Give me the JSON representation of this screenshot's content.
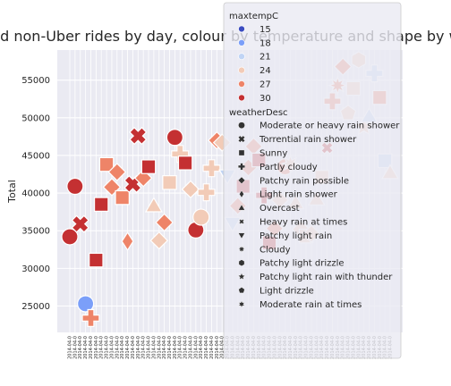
{
  "chart_data": {
    "type": "scatter",
    "title": "Uber and non-Uber rides by day, colour by temperature and shape by weather",
    "xlabel": "",
    "ylabel": "Total",
    "ylim": [
      21500,
      59000
    ],
    "yticks": [
      25000,
      30000,
      35000,
      40000,
      45000,
      50000,
      55000
    ],
    "ytick_labels": [
      "25000",
      "30000",
      "35000",
      "40000",
      "45000",
      "50000",
      "55000"
    ],
    "grid": true,
    "x_tick_count": 62,
    "x_tick_label_text": "2014-04-0",
    "legend": {
      "placement": "right",
      "hue_title": "maxtempC",
      "hue_items": [
        {
          "label": "15",
          "color": "#3b4cc0"
        },
        {
          "label": "18",
          "color": "#7b9ff9"
        },
        {
          "label": "21",
          "color": "#c0d4f5"
        },
        {
          "label": "24",
          "color": "#f2cbb7"
        },
        {
          "label": "27",
          "color": "#ee8468"
        },
        {
          "label": "30",
          "color": "#c43032"
        }
      ],
      "style_title": "weatherDesc",
      "style_items": [
        {
          "label": "Moderate or heavy rain shower",
          "marker": "circle"
        },
        {
          "label": "Torrential rain shower",
          "marker": "x"
        },
        {
          "label": "Sunny",
          "marker": "square"
        },
        {
          "label": "Partly cloudy",
          "marker": "plus"
        },
        {
          "label": "Patchy rain possible",
          "marker": "diamond"
        },
        {
          "label": "Light rain shower",
          "marker": "thin-diamond"
        },
        {
          "label": "Overcast",
          "marker": "triangle-up"
        },
        {
          "label": "Heavy rain at times",
          "marker": "small-x"
        },
        {
          "label": "Patchy light rain",
          "marker": "triangle-down"
        },
        {
          "label": "Cloudy",
          "marker": "star8"
        },
        {
          "label": "Patchy light drizzle",
          "marker": "hexagon"
        },
        {
          "label": "Patchy light rain with thunder",
          "marker": "star"
        },
        {
          "label": "Light drizzle",
          "marker": "pentagon"
        },
        {
          "label": "Moderate rain at times",
          "marker": "star6"
        }
      ]
    },
    "points": [
      {
        "x": 1,
        "y": 34200,
        "temp": 30,
        "marker": "circle"
      },
      {
        "x": 2,
        "y": 40900,
        "temp": 30,
        "marker": "circle"
      },
      {
        "x": 3,
        "y": 35900,
        "temp": 30,
        "marker": "x"
      },
      {
        "x": 4,
        "y": 25300,
        "temp": 18,
        "marker": "circle"
      },
      {
        "x": 5,
        "y": 23400,
        "temp": 27,
        "marker": "plus"
      },
      {
        "x": 6,
        "y": 31100,
        "temp": 30,
        "marker": "square"
      },
      {
        "x": 7,
        "y": 38500,
        "temp": 30,
        "marker": "square"
      },
      {
        "x": 8,
        "y": 43800,
        "temp": 27,
        "marker": "square"
      },
      {
        "x": 9,
        "y": 40800,
        "temp": 27,
        "marker": "diamond"
      },
      {
        "x": 10,
        "y": 42800,
        "temp": 27,
        "marker": "diamond"
      },
      {
        "x": 11,
        "y": 39400,
        "temp": 27,
        "marker": "square"
      },
      {
        "x": 12,
        "y": 33600,
        "temp": 27,
        "marker": "thin-diamond"
      },
      {
        "x": 13,
        "y": 41200,
        "temp": 30,
        "marker": "x"
      },
      {
        "x": 14,
        "y": 47600,
        "temp": 30,
        "marker": "x"
      },
      {
        "x": 15,
        "y": 42000,
        "temp": 27,
        "marker": "diamond"
      },
      {
        "x": 16,
        "y": 43500,
        "temp": 30,
        "marker": "square"
      },
      {
        "x": 17,
        "y": 38300,
        "temp": 24,
        "marker": "triangle-up"
      },
      {
        "x": 18,
        "y": 33700,
        "temp": 24,
        "marker": "diamond"
      },
      {
        "x": 19,
        "y": 36100,
        "temp": 27,
        "marker": "diamond"
      },
      {
        "x": 20,
        "y": 41400,
        "temp": 24,
        "marker": "square"
      },
      {
        "x": 21,
        "y": 47400,
        "temp": 30,
        "marker": "circle"
      },
      {
        "x": 22,
        "y": 45200,
        "temp": 24,
        "marker": "plus"
      },
      {
        "x": 23,
        "y": 44000,
        "temp": 30,
        "marker": "square"
      },
      {
        "x": 24,
        "y": 40500,
        "temp": 24,
        "marker": "diamond"
      },
      {
        "x": 25,
        "y": 35100,
        "temp": 30,
        "marker": "circle"
      },
      {
        "x": 26,
        "y": 36800,
        "temp": 24,
        "marker": "circle"
      },
      {
        "x": 27,
        "y": 40100,
        "temp": 24,
        "marker": "plus"
      },
      {
        "x": 28,
        "y": 43300,
        "temp": 24,
        "marker": "plus"
      },
      {
        "x": 29,
        "y": 47000,
        "temp": 27,
        "marker": "diamond"
      },
      {
        "x": 30,
        "y": 46700,
        "temp": 24,
        "marker": "diamond"
      },
      {
        "x": 31,
        "y": 42300,
        "temp": 21,
        "marker": "triangle-down"
      },
      {
        "x": 32,
        "y": 36000,
        "temp": 21,
        "marker": "triangle-down"
      },
      {
        "x": 33,
        "y": 38300,
        "temp": 27,
        "marker": "diamond"
      },
      {
        "x": 34,
        "y": 40900,
        "temp": 30,
        "marker": "square"
      },
      {
        "x": 35,
        "y": 43400,
        "temp": 27,
        "marker": "diamond"
      },
      {
        "x": 36,
        "y": 46200,
        "temp": 27,
        "marker": "diamond"
      },
      {
        "x": 37,
        "y": 44400,
        "temp": 30,
        "marker": "square"
      },
      {
        "x": 38,
        "y": 39700,
        "temp": 30,
        "marker": "plus"
      },
      {
        "x": 39,
        "y": 33400,
        "temp": 30,
        "marker": "square"
      },
      {
        "x": 40,
        "y": 35300,
        "temp": 27,
        "marker": "diamond"
      },
      {
        "x": 41,
        "y": 39100,
        "temp": 24,
        "marker": "diamond"
      },
      {
        "x": 42,
        "y": 43500,
        "temp": 27,
        "marker": "circle"
      },
      {
        "x": 43,
        "y": 43900,
        "temp": 24,
        "marker": "star8"
      },
      {
        "x": 44,
        "y": 38700,
        "temp": 24,
        "marker": "triangle-up"
      },
      {
        "x": 45,
        "y": 35200,
        "temp": 24,
        "marker": "diamond"
      },
      {
        "x": 46,
        "y": 34300,
        "temp": 24,
        "marker": "square"
      },
      {
        "x": 47,
        "y": 34600,
        "temp": 24,
        "marker": "diamond"
      },
      {
        "x": 48,
        "y": 39200,
        "temp": 24,
        "marker": "triangle-up"
      },
      {
        "x": 49,
        "y": 42100,
        "temp": 24,
        "marker": "square"
      },
      {
        "x": 50,
        "y": 46000,
        "temp": 30,
        "marker": "small-x"
      },
      {
        "x": 51,
        "y": 52200,
        "temp": 27,
        "marker": "plus"
      },
      {
        "x": 52,
        "y": 54300,
        "temp": 27,
        "marker": "star8"
      },
      {
        "x": 53,
        "y": 56800,
        "temp": 27,
        "marker": "diamond"
      },
      {
        "x": 54,
        "y": 50600,
        "temp": 24,
        "marker": "pentagon"
      },
      {
        "x": 55,
        "y": 53900,
        "temp": 24,
        "marker": "square"
      },
      {
        "x": 56,
        "y": 57700,
        "temp": 24,
        "marker": "hexagon"
      },
      {
        "x": 57,
        "y": 48800,
        "temp": 24,
        "marker": "star"
      },
      {
        "x": 58,
        "y": 50200,
        "temp": 21,
        "marker": "triangle-up"
      },
      {
        "x": 59,
        "y": 55900,
        "temp": 21,
        "marker": "plus"
      },
      {
        "x": 60,
        "y": 52700,
        "temp": 27,
        "marker": "square"
      },
      {
        "x": 61,
        "y": 44300,
        "temp": 21,
        "marker": "square"
      },
      {
        "x": 62,
        "y": 42700,
        "temp": 24,
        "marker": "triangle-up"
      }
    ]
  }
}
